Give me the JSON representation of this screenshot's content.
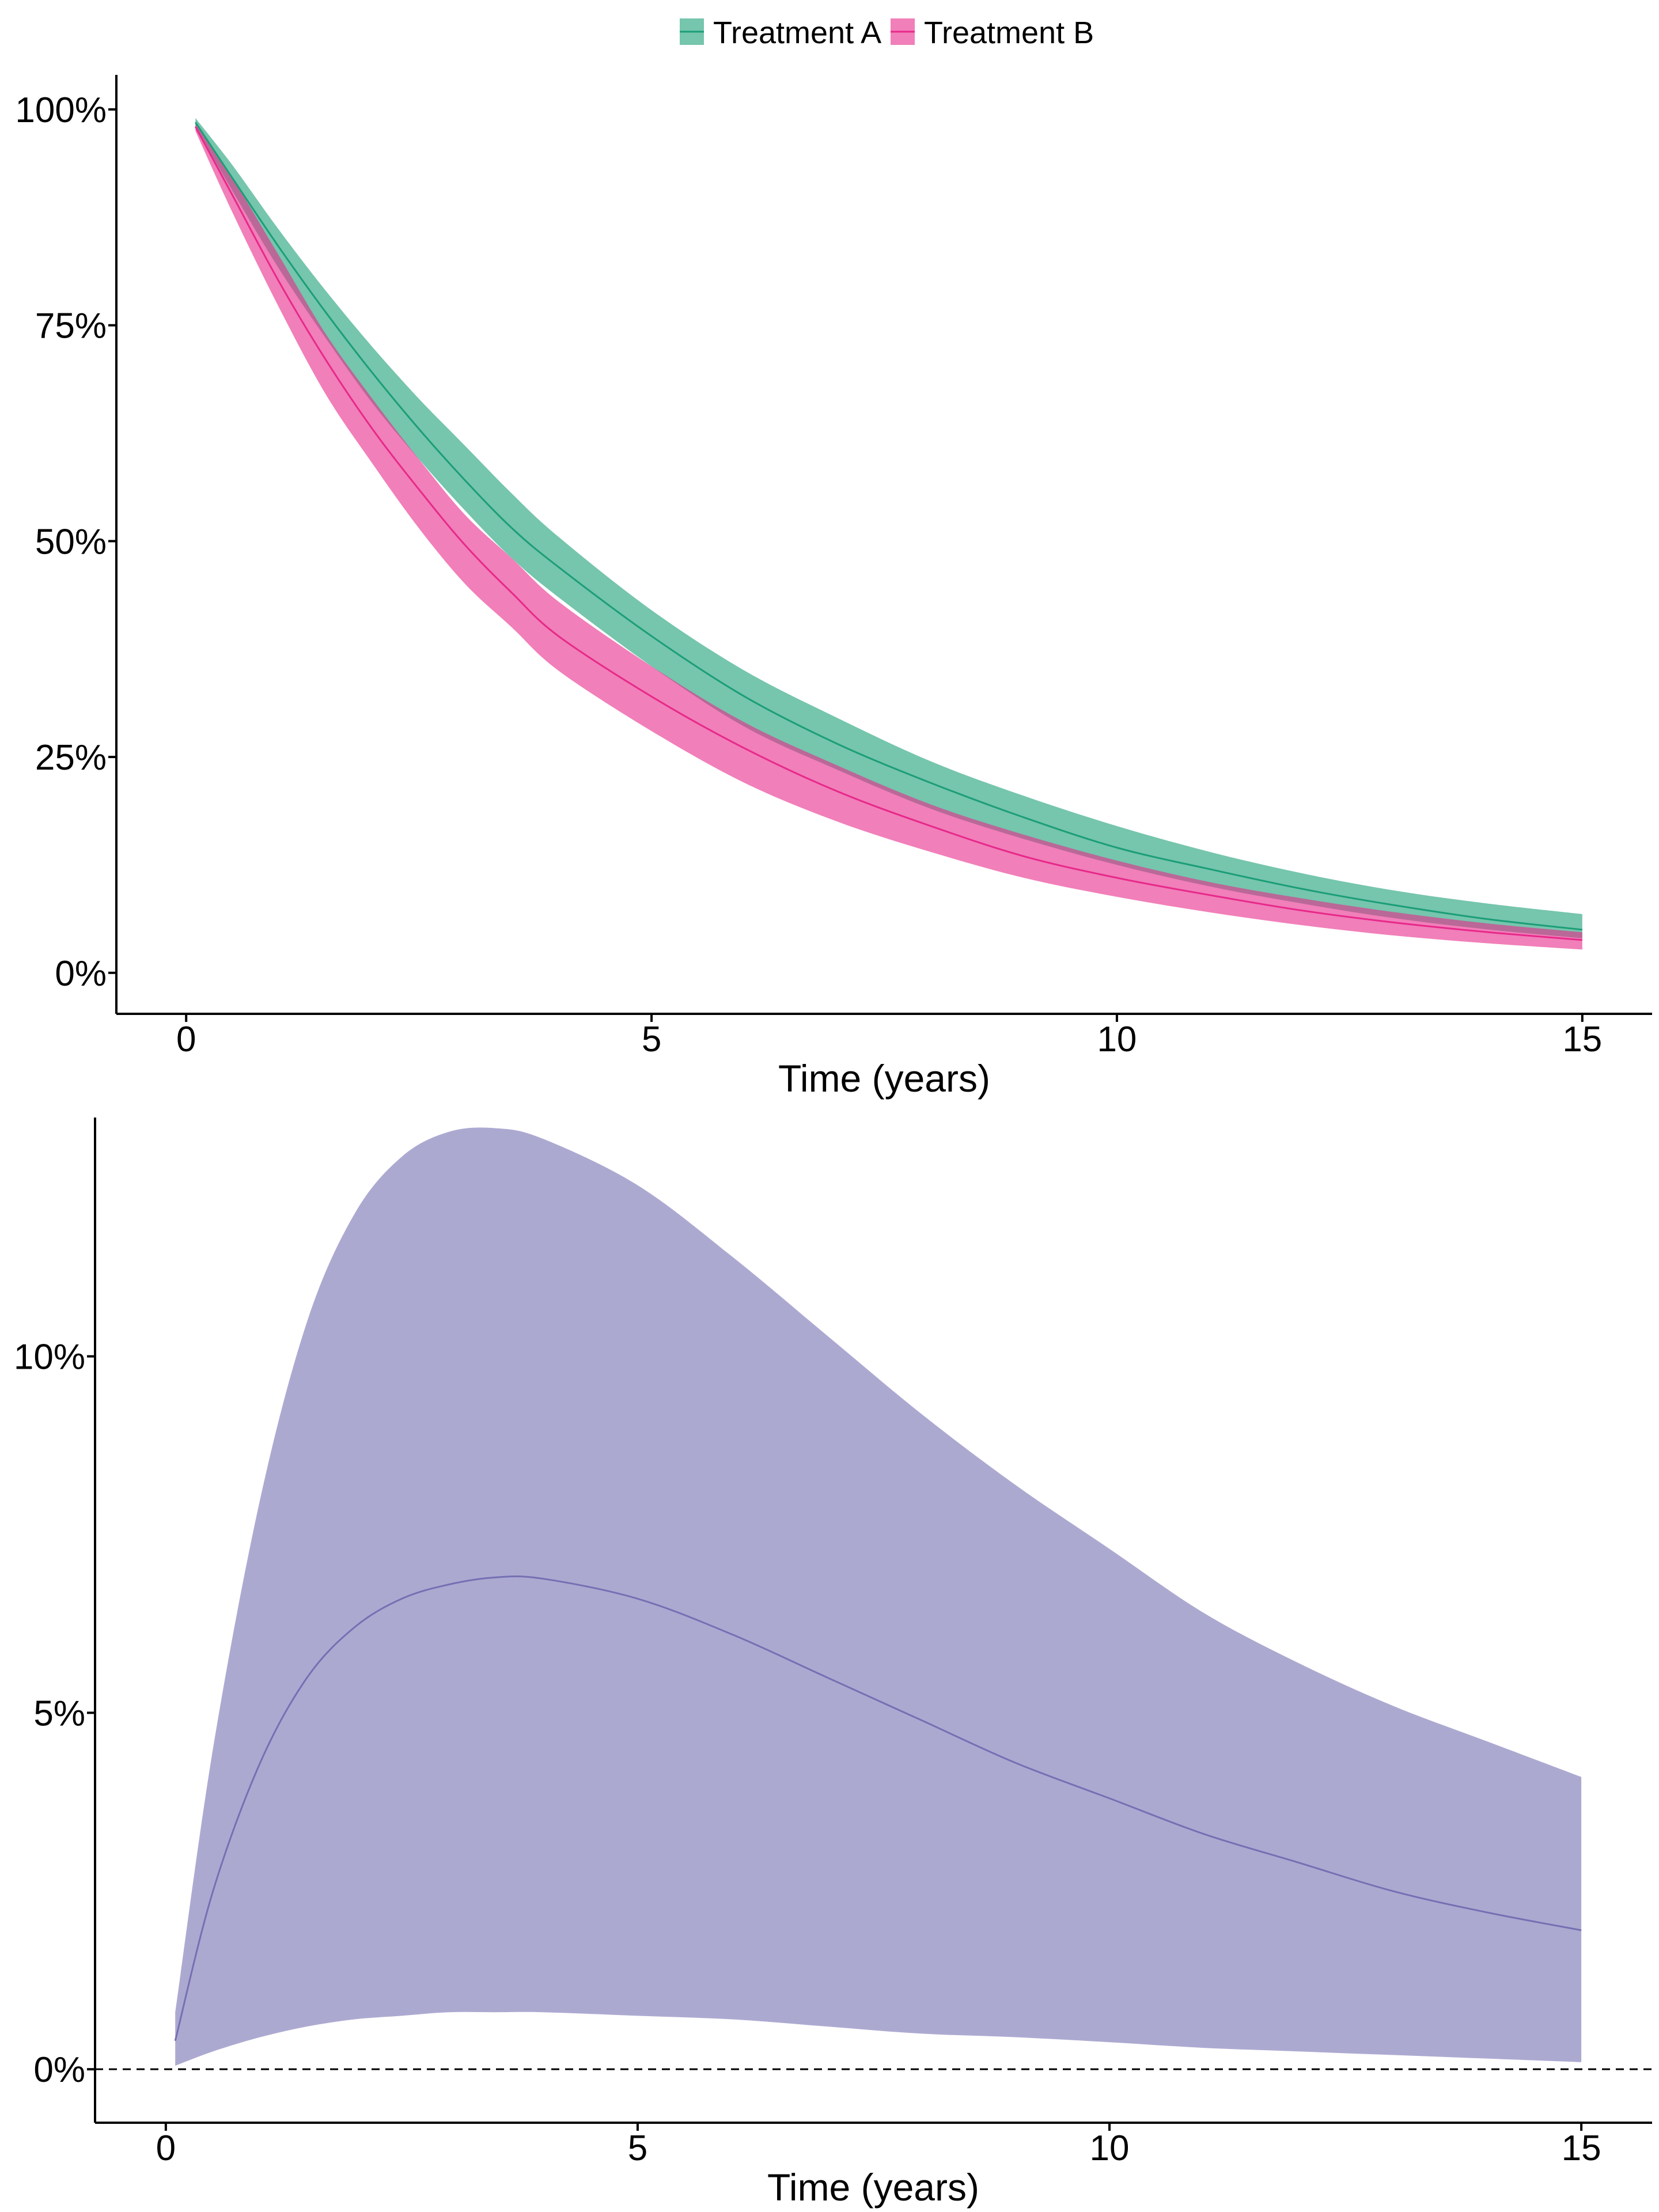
{
  "colors": {
    "treatment_a": "#1b9e77",
    "treatment_b": "#e7298a",
    "difference": "#7570b3",
    "axis": "#000000"
  },
  "legend": {
    "items": [
      {
        "label": "Treatment A",
        "color": "#1b9e77"
      },
      {
        "label": "Treatment B",
        "color": "#e7298a"
      }
    ],
    "position": "top-center"
  },
  "chart_data": [
    {
      "type": "area",
      "subtype": "line-with-confidence-band",
      "xlabel": "Time (years)",
      "ylabel": "",
      "xlim": [
        -0.75,
        15.75
      ],
      "ylim": [
        -0.0475,
        1.04
      ],
      "x_ticks": [
        0,
        5,
        10,
        15
      ],
      "x_tick_labels": [
        "0",
        "5",
        "10",
        "15"
      ],
      "y_ticks": [
        0,
        0.25,
        0.5,
        0.75,
        1.0
      ],
      "y_tick_labels": [
        "0%",
        "25%",
        "50%",
        "75%",
        "100%"
      ],
      "grid": false,
      "x": [
        0.1,
        0.5,
        1,
        1.5,
        2,
        2.5,
        3,
        3.5,
        4,
        5,
        6,
        7,
        8,
        9,
        10,
        11,
        12,
        13,
        14,
        15
      ],
      "series": [
        {
          "name": "Treatment A",
          "color": "#1b9e77",
          "values": [
            0.985,
            0.92,
            0.84,
            0.765,
            0.695,
            0.63,
            0.57,
            0.515,
            0.47,
            0.39,
            0.32,
            0.265,
            0.22,
            0.18,
            0.145,
            0.12,
            0.097,
            0.078,
            0.062,
            0.05
          ],
          "lower": [
            0.98,
            0.905,
            0.815,
            0.735,
            0.66,
            0.595,
            0.535,
            0.48,
            0.435,
            0.355,
            0.285,
            0.235,
            0.19,
            0.155,
            0.125,
            0.1,
            0.08,
            0.063,
            0.05,
            0.04
          ],
          "upper": [
            0.99,
            0.935,
            0.86,
            0.79,
            0.725,
            0.665,
            0.61,
            0.555,
            0.505,
            0.42,
            0.35,
            0.295,
            0.245,
            0.205,
            0.17,
            0.14,
            0.115,
            0.095,
            0.08,
            0.068
          ]
        },
        {
          "name": "Treatment B",
          "color": "#e7298a",
          "values": [
            0.98,
            0.9,
            0.8,
            0.71,
            0.63,
            0.56,
            0.495,
            0.44,
            0.39,
            0.32,
            0.26,
            0.21,
            0.17,
            0.135,
            0.11,
            0.09,
            0.072,
            0.058,
            0.047,
            0.038
          ],
          "lower": [
            0.975,
            0.88,
            0.77,
            0.67,
            0.59,
            0.515,
            0.45,
            0.4,
            0.35,
            0.28,
            0.22,
            0.175,
            0.14,
            0.11,
            0.088,
            0.07,
            0.055,
            0.043,
            0.034,
            0.027
          ],
          "upper": [
            0.985,
            0.92,
            0.83,
            0.74,
            0.665,
            0.595,
            0.53,
            0.48,
            0.43,
            0.355,
            0.29,
            0.24,
            0.195,
            0.16,
            0.13,
            0.105,
            0.086,
            0.07,
            0.057,
            0.047
          ]
        }
      ]
    },
    {
      "type": "area",
      "subtype": "line-with-confidence-band",
      "xlabel": "Time (years)",
      "ylabel": "",
      "xlim": [
        -0.75,
        15.75
      ],
      "ylim": [
        -0.0075,
        0.1335
      ],
      "x_ticks": [
        0,
        5,
        10,
        15
      ],
      "x_tick_labels": [
        "0",
        "5",
        "10",
        "15"
      ],
      "y_ticks": [
        0,
        0.05,
        0.1
      ],
      "y_tick_labels": [
        "0%",
        "5%",
        "10%"
      ],
      "reference_line": {
        "y": 0,
        "style": "dashed"
      },
      "grid": false,
      "x": [
        0.1,
        0.5,
        1,
        1.5,
        2,
        2.5,
        3,
        3.5,
        4,
        5,
        6,
        7,
        8,
        9,
        10,
        11,
        12,
        13,
        14,
        15
      ],
      "series": [
        {
          "name": "",
          "color": "#7570b3",
          "values": [
            0.004,
            0.025,
            0.043,
            0.055,
            0.062,
            0.066,
            0.068,
            0.069,
            0.0688,
            0.066,
            0.061,
            0.055,
            0.049,
            0.043,
            0.038,
            0.033,
            0.029,
            0.025,
            0.022,
            0.0195
          ],
          "lower": [
            0.0005,
            0.0025,
            0.0045,
            0.006,
            0.007,
            0.0075,
            0.008,
            0.008,
            0.008,
            0.0075,
            0.007,
            0.006,
            0.005,
            0.0045,
            0.0038,
            0.003,
            0.0025,
            0.002,
            0.0015,
            0.001
          ],
          "upper": [
            0.008,
            0.045,
            0.08,
            0.105,
            0.12,
            0.128,
            0.1315,
            0.132,
            0.1305,
            0.124,
            0.114,
            0.103,
            0.092,
            0.082,
            0.073,
            0.064,
            0.057,
            0.051,
            0.046,
            0.041
          ]
        }
      ]
    }
  ]
}
